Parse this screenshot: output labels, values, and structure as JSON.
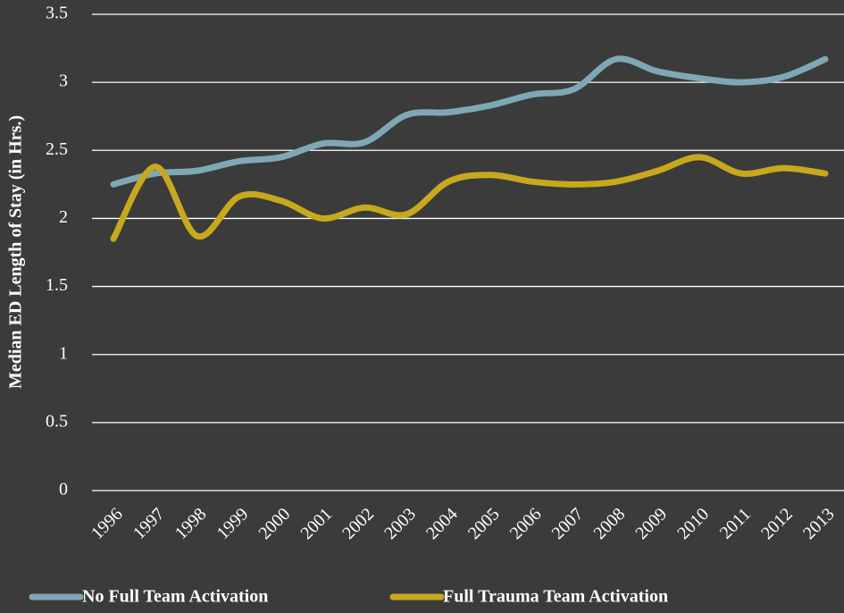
{
  "chart_data": {
    "type": "line",
    "y_label": "Median ED Length of Stay (in Hrs.)",
    "categories": [
      "1996",
      "1997",
      "1998",
      "1999",
      "2000",
      "2001",
      "2002",
      "2003",
      "2004",
      "2005",
      "2006",
      "2007",
      "2008",
      "2009",
      "2010",
      "2011",
      "2012",
      "2013"
    ],
    "series": [
      {
        "name": "No Full Team Activation",
        "color": "#7fa8b6",
        "values": [
          2.25,
          2.33,
          2.35,
          2.42,
          2.45,
          2.55,
          2.56,
          2.76,
          2.78,
          2.83,
          2.91,
          2.95,
          3.17,
          3.08,
          3.03,
          3.0,
          3.04,
          3.17
        ]
      },
      {
        "name": "Full Trauma Team Activation",
        "color": "#c8a81c",
        "values": [
          1.85,
          2.38,
          1.87,
          2.16,
          2.13,
          2.0,
          2.08,
          2.03,
          2.27,
          2.32,
          2.27,
          2.25,
          2.27,
          2.35,
          2.45,
          2.33,
          2.37,
          2.33
        ]
      }
    ],
    "ylim": [
      0,
      3.5
    ],
    "yticks": [
      0,
      0.5,
      1,
      1.5,
      2,
      2.5,
      3,
      3.5
    ],
    "grid": true,
    "legend": "bottom"
  }
}
